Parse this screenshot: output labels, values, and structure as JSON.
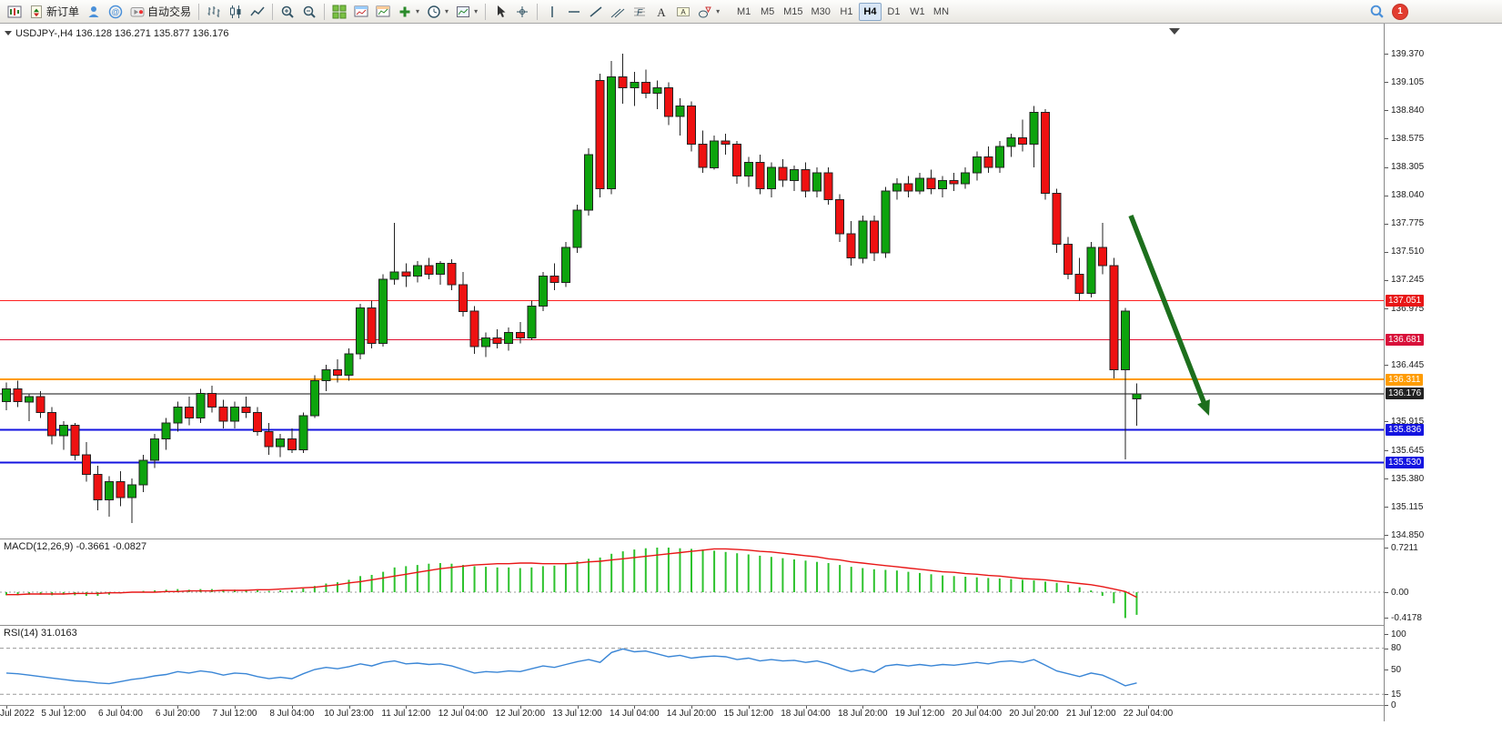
{
  "toolbar": {
    "new_order_label": "新订单",
    "autotrade_label": "自动交易",
    "timeframes": [
      "M1",
      "M5",
      "M15",
      "M30",
      "H1",
      "H4",
      "D1",
      "W1",
      "MN"
    ],
    "active_timeframe": "H4",
    "notification_count": "1",
    "items": [
      {
        "name": "new-chart-button",
        "icon": "new-chart-icon"
      },
      {
        "name": "new-order-button",
        "icon": "new-order-icon",
        "label": "新订单"
      },
      {
        "name": "profile-button",
        "icon": "profile-icon"
      },
      {
        "name": "community-button",
        "icon": "community-icon"
      },
      {
        "name": "autotrade-button",
        "icon": "autotrade-icon",
        "label": "自动交易"
      },
      {
        "sep": true
      },
      {
        "name": "bar-chart-button",
        "icon": "bar-chart-icon"
      },
      {
        "name": "candlestick-button",
        "icon": "candlestick-icon"
      },
      {
        "name": "line-chart-button",
        "icon": "line-chart-icon"
      },
      {
        "sep": true
      },
      {
        "name": "zoom-in-button",
        "icon": "zoom-in-icon"
      },
      {
        "name": "zoom-out-button",
        "icon": "zoom-out-icon"
      },
      {
        "sep": true
      },
      {
        "name": "tile-windows-button",
        "icon": "tile-windows-icon"
      },
      {
        "name": "arrange-windows-button",
        "icon": "chart-window-icon"
      },
      {
        "name": "cascade-windows-button",
        "icon": "chart-window2-icon"
      },
      {
        "name": "indicators-button",
        "icon": "add-indicator-icon",
        "caret": true
      },
      {
        "name": "periods-button",
        "icon": "period-icon",
        "caret": true
      },
      {
        "name": "templates-button",
        "icon": "template-icon",
        "caret": true
      },
      {
        "sep": true
      },
      {
        "name": "cursor-button",
        "icon": "cursor-icon"
      },
      {
        "name": "crosshair-button",
        "icon": "crosshair-icon"
      },
      {
        "sep": true
      },
      {
        "name": "vline-button",
        "icon": "vline-icon"
      },
      {
        "name": "hline-button",
        "icon": "hline-icon"
      },
      {
        "name": "trendline-button",
        "icon": "trendline-icon"
      },
      {
        "name": "channel-button",
        "icon": "channel-icon"
      },
      {
        "name": "fibonacci-button",
        "icon": "fibo-icon"
      },
      {
        "name": "text-button",
        "icon": "text-icon"
      },
      {
        "name": "label-button",
        "icon": "label-icon"
      },
      {
        "name": "shapes-button",
        "icon": "shapes-icon",
        "caret": true
      }
    ]
  },
  "chart": {
    "symbol_label": "USDJPY-,H4 136.128 136.271 135.877 136.176",
    "price_axis_labels": [
      "139.370",
      "139.105",
      "138.840",
      "138.575",
      "138.305",
      "138.040",
      "137.775",
      "137.510",
      "137.245",
      "136.975",
      "136.445",
      "135.915",
      "135.645",
      "135.380",
      "135.115",
      "134.850"
    ]
  },
  "indicators": {
    "macd_label": "MACD(12,26,9) -0.3661 -0.0827",
    "macd_scale": [
      "0.7211",
      "0.00",
      "-0.4178"
    ],
    "rsi_label": "RSI(14) 31.0163",
    "rsi_scale": [
      "100",
      "80",
      "50",
      "15",
      "0"
    ]
  },
  "chart_data": {
    "type": "candlestick",
    "symbol": "USDJPY",
    "timeframe": "H4",
    "current_ohlc": {
      "open": 136.128,
      "high": 136.271,
      "low": 135.877,
      "close": 136.176
    },
    "price_range": [
      134.85,
      139.5
    ],
    "x_labels": [
      "Jul 2022",
      "5 Jul 12:00",
      "6 Jul 04:00",
      "6 Jul 20:00",
      "7 Jul 12:00",
      "8 Jul 04:00",
      "10 Jul 23:00",
      "11 Jul 12:00",
      "12 Jul 04:00",
      "12 Jul 20:00",
      "13 Jul 12:00",
      "14 Jul 04:00",
      "14 Jul 20:00",
      "15 Jul 12:00",
      "18 Jul 04:00",
      "18 Jul 20:00",
      "19 Jul 12:00",
      "20 Jul 04:00",
      "20 Jul 20:00",
      "21 Jul 12:00",
      "22 Jul 04:00"
    ],
    "candles_per_label": 5,
    "style": {
      "bull": "#0da30d",
      "bear": "#ee1111",
      "outline": "#222222",
      "macd_hist": "#2dc22d",
      "macd_signal": "#e81717",
      "rsi_line": "#3a86d6",
      "arrow": "#1d6f1d"
    },
    "hlines": [
      {
        "price": 137.051,
        "label": "137.051",
        "color": "#ff2020",
        "width": 1,
        "badge": "#e81717"
      },
      {
        "price": 136.681,
        "label": "136.681",
        "color": "#e01030",
        "width": 1,
        "badge": "#d8103a"
      },
      {
        "price": 136.311,
        "label": "136.311",
        "color": "#ff9c00",
        "width": 2,
        "badge": "#ff9c00"
      },
      {
        "price": 136.176,
        "label": "136.176",
        "color": "#111111",
        "width": 1,
        "badge": "#222222"
      },
      {
        "price": 135.836,
        "label": "135.836",
        "color": "#1414e0",
        "width": 2,
        "badge": "#1414e0"
      },
      {
        "price": 135.53,
        "label": "135.530",
        "color": "#1414e0",
        "width": 2,
        "badge": "#1414e0"
      }
    ],
    "candles": [
      [
        136.1,
        136.28,
        136.02,
        136.22
      ],
      [
        136.22,
        136.3,
        136.05,
        136.1
      ],
      [
        136.1,
        136.18,
        135.92,
        136.15
      ],
      [
        136.15,
        136.2,
        135.95,
        136.0
      ],
      [
        136.0,
        136.05,
        135.7,
        135.78
      ],
      [
        135.78,
        135.92,
        135.65,
        135.88
      ],
      [
        135.88,
        135.9,
        135.55,
        135.6
      ],
      [
        135.6,
        135.72,
        135.35,
        135.42
      ],
      [
        135.42,
        135.5,
        135.08,
        135.18
      ],
      [
        135.18,
        135.4,
        135.02,
        135.35
      ],
      [
        135.35,
        135.45,
        135.12,
        135.2
      ],
      [
        135.2,
        135.38,
        134.96,
        135.32
      ],
      [
        135.32,
        135.6,
        135.25,
        135.55
      ],
      [
        135.55,
        135.8,
        135.48,
        135.75
      ],
      [
        135.75,
        135.95,
        135.65,
        135.9
      ],
      [
        135.9,
        136.1,
        135.82,
        136.05
      ],
      [
        136.05,
        136.15,
        135.88,
        135.95
      ],
      [
        135.95,
        136.22,
        135.9,
        136.18
      ],
      [
        136.18,
        136.25,
        136.0,
        136.05
      ],
      [
        136.05,
        136.12,
        135.85,
        135.92
      ],
      [
        135.92,
        136.1,
        135.85,
        136.05
      ],
      [
        136.05,
        136.15,
        135.95,
        136.0
      ],
      [
        136.0,
        136.05,
        135.78,
        135.82
      ],
      [
        135.82,
        135.9,
        135.6,
        135.68
      ],
      [
        135.68,
        135.8,
        135.58,
        135.75
      ],
      [
        135.75,
        135.85,
        135.62,
        135.65
      ],
      [
        135.65,
        136.0,
        135.62,
        135.97
      ],
      [
        135.97,
        136.35,
        135.95,
        136.3
      ],
      [
        136.3,
        136.45,
        136.2,
        136.4
      ],
      [
        136.4,
        136.5,
        136.28,
        136.35
      ],
      [
        136.35,
        136.6,
        136.3,
        136.55
      ],
      [
        136.55,
        137.02,
        136.5,
        136.98
      ],
      [
        136.98,
        137.05,
        136.6,
        136.65
      ],
      [
        136.65,
        137.3,
        136.62,
        137.25
      ],
      [
        137.25,
        137.78,
        137.2,
        137.32
      ],
      [
        137.32,
        137.4,
        137.18,
        137.28
      ],
      [
        137.28,
        137.42,
        137.22,
        137.38
      ],
      [
        137.38,
        137.45,
        137.25,
        137.3
      ],
      [
        137.3,
        137.42,
        137.2,
        137.4
      ],
      [
        137.4,
        137.44,
        137.15,
        137.2
      ],
      [
        137.2,
        137.32,
        136.9,
        136.95
      ],
      [
        136.95,
        137.0,
        136.55,
        136.62
      ],
      [
        136.62,
        136.75,
        136.52,
        136.7
      ],
      [
        136.7,
        136.78,
        136.6,
        136.65
      ],
      [
        136.65,
        136.8,
        136.58,
        136.75
      ],
      [
        136.75,
        136.85,
        136.65,
        136.7
      ],
      [
        136.7,
        137.05,
        136.68,
        137.0
      ],
      [
        137.0,
        137.32,
        136.95,
        137.28
      ],
      [
        137.28,
        137.4,
        137.15,
        137.22
      ],
      [
        137.22,
        137.6,
        137.18,
        137.55
      ],
      [
        137.55,
        137.95,
        137.5,
        137.9
      ],
      [
        137.9,
        138.48,
        137.85,
        138.42
      ],
      [
        139.12,
        139.18,
        138.02,
        138.1
      ],
      [
        138.1,
        139.3,
        138.05,
        139.15
      ],
      [
        139.15,
        139.37,
        138.9,
        139.05
      ],
      [
        139.05,
        139.2,
        138.88,
        139.1
      ],
      [
        139.1,
        139.22,
        138.95,
        139.0
      ],
      [
        139.0,
        139.12,
        138.85,
        139.05
      ],
      [
        139.05,
        139.1,
        138.7,
        138.78
      ],
      [
        138.78,
        138.95,
        138.6,
        138.88
      ],
      [
        138.88,
        138.92,
        138.45,
        138.52
      ],
      [
        138.52,
        138.65,
        138.25,
        138.3
      ],
      [
        138.3,
        138.6,
        138.28,
        138.55
      ],
      [
        138.55,
        138.62,
        138.42,
        138.52
      ],
      [
        138.52,
        138.55,
        138.15,
        138.22
      ],
      [
        138.22,
        138.4,
        138.12,
        138.35
      ],
      [
        138.35,
        138.42,
        138.05,
        138.1
      ],
      [
        138.1,
        138.35,
        138.02,
        138.3
      ],
      [
        138.3,
        138.38,
        138.12,
        138.18
      ],
      [
        138.18,
        138.32,
        138.08,
        138.28
      ],
      [
        138.28,
        138.35,
        138.02,
        138.08
      ],
      [
        138.08,
        138.3,
        138.02,
        138.25
      ],
      [
        138.25,
        138.3,
        137.95,
        138.0
      ],
      [
        138.0,
        138.05,
        137.6,
        137.68
      ],
      [
        137.68,
        137.8,
        137.38,
        137.45
      ],
      [
        137.45,
        137.85,
        137.4,
        137.8
      ],
      [
        137.8,
        137.85,
        137.42,
        137.5
      ],
      [
        137.5,
        138.12,
        137.45,
        138.08
      ],
      [
        138.08,
        138.2,
        138.0,
        138.15
      ],
      [
        138.15,
        138.22,
        138.02,
        138.08
      ],
      [
        138.08,
        138.25,
        138.05,
        138.2
      ],
      [
        138.2,
        138.28,
        138.05,
        138.1
      ],
      [
        138.1,
        138.22,
        138.02,
        138.18
      ],
      [
        138.18,
        138.25,
        138.08,
        138.15
      ],
      [
        138.15,
        138.3,
        138.1,
        138.25
      ],
      [
        138.25,
        138.45,
        138.18,
        138.4
      ],
      [
        138.4,
        138.5,
        138.25,
        138.3
      ],
      [
        138.3,
        138.55,
        138.25,
        138.5
      ],
      [
        138.5,
        138.62,
        138.4,
        138.58
      ],
      [
        138.58,
        138.75,
        138.45,
        138.52
      ],
      [
        138.52,
        138.88,
        138.3,
        138.82
      ],
      [
        138.82,
        138.85,
        138.0,
        138.06
      ],
      [
        138.06,
        138.1,
        137.5,
        137.58
      ],
      [
        137.58,
        137.65,
        137.25,
        137.3
      ],
      [
        137.3,
        137.45,
        137.05,
        137.12
      ],
      [
        137.12,
        137.6,
        137.08,
        137.55
      ],
      [
        137.55,
        137.78,
        137.3,
        137.38
      ],
      [
        137.38,
        137.45,
        136.32,
        136.4
      ],
      [
        136.4,
        136.98,
        135.56,
        136.95
      ],
      [
        136.128,
        136.271,
        135.877,
        136.176
      ]
    ],
    "macd": {
      "params": "12,26,9",
      "current": {
        "macd": -0.3661,
        "signal": -0.0827
      },
      "scale": [
        0.7211,
        0.0,
        -0.4178
      ],
      "histogram": [
        -0.05,
        -0.05,
        -0.04,
        -0.04,
        -0.05,
        -0.04,
        -0.05,
        -0.06,
        -0.06,
        -0.04,
        -0.02,
        0.0,
        0.02,
        0.03,
        0.04,
        0.05,
        0.04,
        0.05,
        0.05,
        0.04,
        0.04,
        0.04,
        0.03,
        0.02,
        0.03,
        0.03,
        0.06,
        0.1,
        0.14,
        0.16,
        0.2,
        0.26,
        0.28,
        0.33,
        0.4,
        0.42,
        0.44,
        0.46,
        0.47,
        0.46,
        0.44,
        0.42,
        0.41,
        0.4,
        0.4,
        0.39,
        0.4,
        0.42,
        0.43,
        0.46,
        0.5,
        0.54,
        0.56,
        0.62,
        0.66,
        0.69,
        0.71,
        0.7211,
        0.72,
        0.71,
        0.7,
        0.69,
        0.67,
        0.65,
        0.63,
        0.61,
        0.59,
        0.57,
        0.55,
        0.53,
        0.51,
        0.49,
        0.47,
        0.44,
        0.41,
        0.39,
        0.37,
        0.36,
        0.35,
        0.33,
        0.31,
        0.29,
        0.27,
        0.26,
        0.25,
        0.24,
        0.23,
        0.22,
        0.21,
        0.2,
        0.19,
        0.17,
        0.15,
        0.12,
        0.08,
        0.03,
        -0.06,
        -0.18,
        -0.4178,
        -0.3661
      ],
      "signal": [
        -0.04,
        -0.04,
        -0.03,
        -0.03,
        -0.03,
        -0.03,
        -0.02,
        -0.02,
        -0.02,
        -0.01,
        -0.01,
        0.0,
        0.0,
        0.0,
        0.01,
        0.01,
        0.02,
        0.02,
        0.02,
        0.03,
        0.03,
        0.03,
        0.04,
        0.04,
        0.05,
        0.06,
        0.07,
        0.08,
        0.1,
        0.12,
        0.15,
        0.17,
        0.2,
        0.23,
        0.26,
        0.29,
        0.32,
        0.35,
        0.38,
        0.4,
        0.42,
        0.44,
        0.45,
        0.46,
        0.46,
        0.47,
        0.47,
        0.46,
        0.46,
        0.46,
        0.47,
        0.49,
        0.5,
        0.52,
        0.54,
        0.56,
        0.58,
        0.6,
        0.62,
        0.64,
        0.66,
        0.68,
        0.7,
        0.7,
        0.69,
        0.68,
        0.66,
        0.65,
        0.63,
        0.61,
        0.59,
        0.57,
        0.54,
        0.52,
        0.49,
        0.47,
        0.45,
        0.43,
        0.41,
        0.39,
        0.37,
        0.35,
        0.33,
        0.32,
        0.3,
        0.29,
        0.27,
        0.26,
        0.24,
        0.22,
        0.21,
        0.2,
        0.18,
        0.16,
        0.14,
        0.12,
        0.09,
        0.05,
        0.01,
        -0.0827
      ]
    },
    "rsi": {
      "period": 14,
      "current": 31.0163,
      "levels": [
        80,
        15
      ],
      "values": [
        45,
        44,
        42,
        40,
        38,
        36,
        34,
        33,
        31,
        30,
        33,
        36,
        38,
        41,
        43,
        47,
        45,
        48,
        46,
        42,
        45,
        44,
        40,
        37,
        39,
        37,
        44,
        50,
        53,
        51,
        54,
        58,
        55,
        60,
        62,
        58,
        59,
        57,
        58,
        55,
        50,
        45,
        47,
        46,
        48,
        47,
        51,
        55,
        53,
        57,
        61,
        64,
        60,
        74,
        79,
        75,
        76,
        72,
        68,
        70,
        66,
        68,
        69,
        68,
        64,
        66,
        62,
        64,
        62,
        63,
        60,
        62,
        58,
        52,
        47,
        50,
        46,
        55,
        57,
        55,
        57,
        55,
        57,
        56,
        58,
        60,
        58,
        61,
        62,
        60,
        64,
        56,
        48,
        44,
        40,
        45,
        42,
        35,
        27,
        31
      ]
    },
    "annotation_arrow": {
      "from": [
        1243,
        211
      ],
      "to": [
        1329,
        431
      ]
    }
  }
}
